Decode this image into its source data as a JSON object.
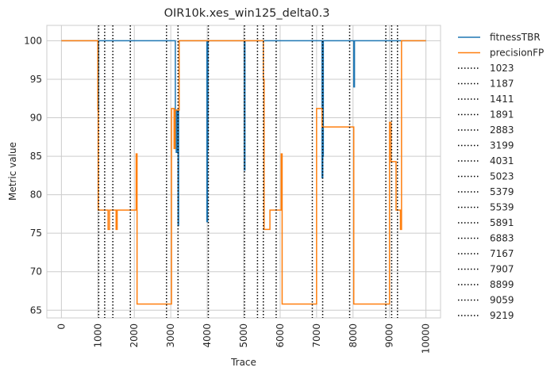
{
  "chart_data": {
    "type": "line",
    "title": "OIR10k.xes_win125_delta0.3",
    "xlabel": "Trace",
    "ylabel": "Metric value",
    "xlim": [
      -400,
      10400
    ],
    "ylim": [
      64,
      102
    ],
    "x_ticks": [
      0,
      1000,
      2000,
      3000,
      4000,
      5000,
      6000,
      7000,
      8000,
      9000,
      10000
    ],
    "y_ticks": [
      65,
      70,
      75,
      80,
      85,
      90,
      95,
      100
    ],
    "grid": true,
    "legend_position": "outside-right",
    "series": [
      {
        "name": "fitnessTBR",
        "color": "#1f77b4",
        "points": [
          [
            0,
            100
          ],
          [
            1000,
            100
          ],
          [
            1000,
            91
          ],
          [
            1020,
            91
          ],
          [
            1020,
            100
          ],
          [
            3125,
            100
          ],
          [
            3125,
            91
          ],
          [
            3150,
            91
          ],
          [
            3150,
            85.5
          ],
          [
            3170,
            85.5
          ],
          [
            3170,
            91
          ],
          [
            3200,
            91
          ],
          [
            3200,
            76
          ],
          [
            3215,
            76
          ],
          [
            3215,
            91
          ],
          [
            3230,
            91
          ],
          [
            3230,
            100
          ],
          [
            3990,
            100
          ],
          [
            3990,
            76.5
          ],
          [
            4010,
            76.5
          ],
          [
            4010,
            86
          ],
          [
            4020,
            86
          ],
          [
            4020,
            100
          ],
          [
            5020,
            100
          ],
          [
            5020,
            83.2
          ],
          [
            5035,
            83.2
          ],
          [
            5035,
            100
          ],
          [
            7150,
            100
          ],
          [
            7150,
            82.2
          ],
          [
            7170,
            82.2
          ],
          [
            7170,
            85
          ],
          [
            7185,
            85
          ],
          [
            7185,
            100
          ],
          [
            8020,
            100
          ],
          [
            8020,
            94
          ],
          [
            8040,
            94
          ],
          [
            8040,
            100
          ],
          [
            10000,
            100
          ]
        ]
      },
      {
        "name": "precisionFP",
        "color": "#ff7f0e",
        "points": [
          [
            0,
            100
          ],
          [
            1000,
            100
          ],
          [
            1000,
            91
          ],
          [
            1010,
            91
          ],
          [
            1010,
            78
          ],
          [
            1280,
            78
          ],
          [
            1280,
            75.5
          ],
          [
            1320,
            75.5
          ],
          [
            1320,
            78
          ],
          [
            1500,
            78
          ],
          [
            1500,
            75.5
          ],
          [
            1530,
            75.5
          ],
          [
            1530,
            78
          ],
          [
            2050,
            78
          ],
          [
            2050,
            85.3
          ],
          [
            2075,
            85.3
          ],
          [
            2075,
            65.8
          ],
          [
            3020,
            65.8
          ],
          [
            3020,
            91.2
          ],
          [
            3090,
            91.2
          ],
          [
            3090,
            86
          ],
          [
            3120,
            86
          ],
          [
            3120,
            91
          ],
          [
            3230,
            91
          ],
          [
            3230,
            100
          ],
          [
            5540,
            100
          ],
          [
            5540,
            95
          ],
          [
            5560,
            95
          ],
          [
            5560,
            75.5
          ],
          [
            5720,
            75.5
          ],
          [
            5720,
            78
          ],
          [
            6030,
            78
          ],
          [
            6030,
            85.3
          ],
          [
            6055,
            85.3
          ],
          [
            6055,
            65.8
          ],
          [
            7000,
            65.8
          ],
          [
            7000,
            91.2
          ],
          [
            7150,
            91.2
          ],
          [
            7150,
            88.8
          ],
          [
            8020,
            88.8
          ],
          [
            8020,
            65.8
          ],
          [
            9000,
            65.8
          ],
          [
            9000,
            89.4
          ],
          [
            9040,
            89.4
          ],
          [
            9040,
            84.3
          ],
          [
            9180,
            84.3
          ],
          [
            9180,
            78
          ],
          [
            9300,
            78
          ],
          [
            9300,
            75.5
          ],
          [
            9330,
            75.5
          ],
          [
            9330,
            100
          ],
          [
            10000,
            100
          ]
        ]
      }
    ],
    "vlines": [
      1023,
      1187,
      1411,
      1891,
      2883,
      3199,
      4031,
      5023,
      5379,
      5539,
      5891,
      6883,
      7167,
      7907,
      8899,
      9059,
      9219
    ],
    "vline_color": "#000000"
  }
}
